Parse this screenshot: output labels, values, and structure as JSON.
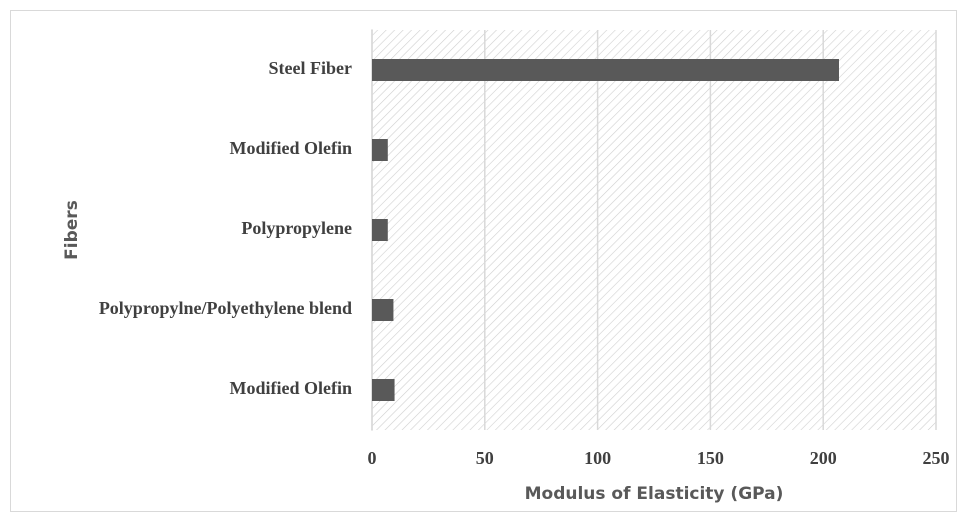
{
  "chart_data": {
    "type": "bar",
    "orientation": "horizontal",
    "xlabel": "Modulus of Elasticity (GPa)",
    "ylabel": "Fibers",
    "categories": [
      "Steel Fiber",
      "Modified Olefin",
      "Polypropylene",
      "Polypropylne/Polyethylene blend",
      "Modified Olefin"
    ],
    "values": [
      207,
      7,
      7,
      9.5,
      10
    ],
    "color": "#595959",
    "xlim": [
      0,
      250
    ],
    "xticks": [
      0,
      50,
      100,
      150,
      200,
      250
    ],
    "grid": true
  }
}
